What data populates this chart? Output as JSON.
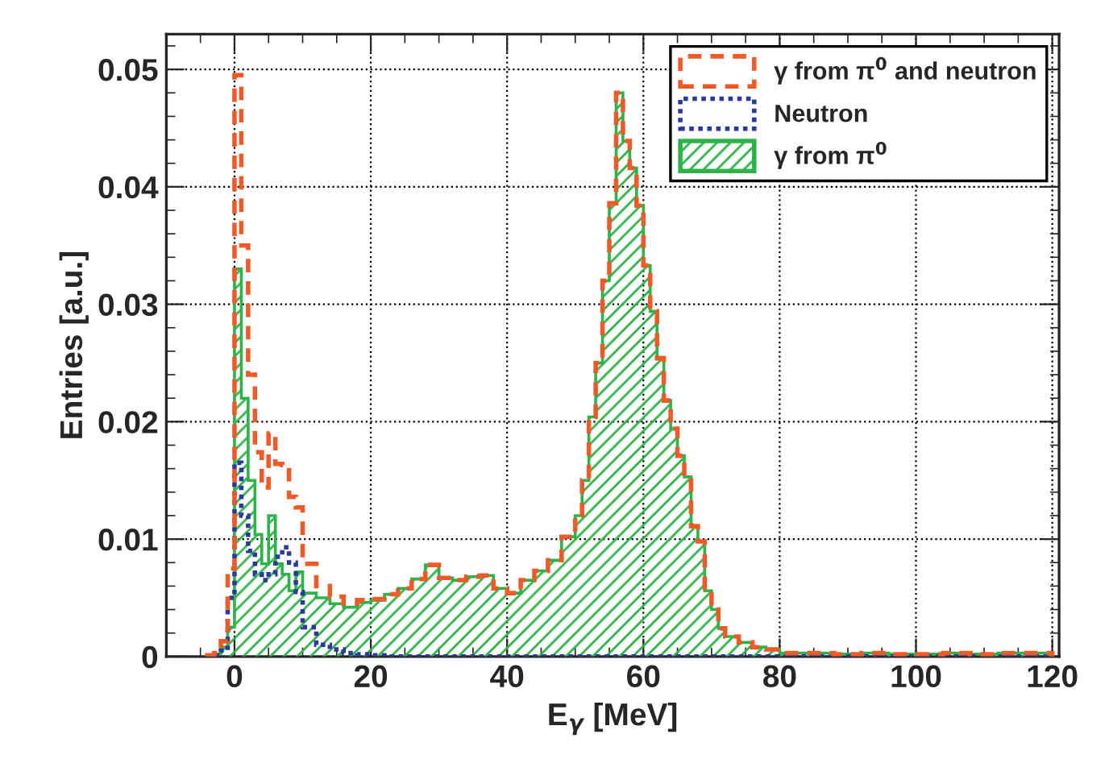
{
  "chart_data": {
    "type": "histogram",
    "xlabel": "E$_{γ}$ [MeV]",
    "ylabel": "Entries [a.u.]",
    "bins": [
      -4,
      -3,
      -2,
      -1,
      0,
      1,
      2,
      3,
      4,
      5,
      6,
      7,
      8,
      9,
      10,
      12,
      14,
      16,
      18,
      20,
      22,
      24,
      26,
      28,
      30,
      32,
      34,
      36,
      38,
      40,
      42,
      44,
      46,
      48,
      50,
      51,
      52,
      53,
      54,
      55,
      56,
      57,
      58,
      59,
      60,
      61,
      62,
      63,
      64,
      65,
      66,
      67,
      68,
      69,
      70,
      71,
      72,
      74,
      76,
      78,
      80,
      84,
      88,
      92,
      96,
      100,
      104,
      108,
      112,
      116,
      120
    ],
    "series": [
      {
        "name": "γ from π$^{0}$ and neutron",
        "color": "#f05a28",
        "line_style": "dashed",
        "values": [
          0.0001,
          0.0003,
          0.0013,
          0.0075,
          0.0495,
          0.035,
          0.024,
          0.0174,
          0.0144,
          0.019,
          0.0164,
          0.0163,
          0.0136,
          0.0127,
          0.0079,
          0.006,
          0.0051,
          0.0045,
          0.0048,
          0.0049,
          0.0053,
          0.0058,
          0.0066,
          0.0078,
          0.0067,
          0.0065,
          0.0068,
          0.0069,
          0.0058,
          0.0054,
          0.0065,
          0.0073,
          0.0082,
          0.0102,
          0.012,
          0.015,
          0.0204,
          0.025,
          0.032,
          0.0386,
          0.048,
          0.0439,
          0.0416,
          0.0384,
          0.0333,
          0.0294,
          0.0254,
          0.0218,
          0.0194,
          0.0171,
          0.0153,
          0.0111,
          0.0098,
          0.0056,
          0.004,
          0.0024,
          0.0017,
          0.0012,
          0.0008,
          0.0006,
          0.0003,
          0.0003,
          0.0002,
          0.0003,
          0.0002,
          0.0002,
          0.0003,
          0.0002,
          0.0003,
          0.0003
        ]
      },
      {
        "name": "Neutron",
        "color": "#2b3a98",
        "line_style": "dotted",
        "values": [
          0,
          0.0001,
          0.0005,
          0.005,
          0.0165,
          0.012,
          0.009,
          0.007,
          0.0065,
          0.007,
          0.0085,
          0.0093,
          0.008,
          0.0055,
          0.0025,
          0.001,
          0.0006,
          0.0003,
          0.0002,
          0.0001,
          0,
          0,
          0,
          0,
          0,
          0,
          0,
          0,
          0,
          0,
          0,
          0,
          0,
          0,
          0,
          0,
          0,
          0,
          0,
          0,
          0,
          0,
          0,
          0,
          0,
          0,
          0,
          0,
          0,
          0,
          0,
          0,
          0,
          0,
          0,
          0,
          0,
          0,
          0,
          0,
          0,
          0,
          0,
          0,
          0,
          0,
          0,
          0,
          0,
          0
        ]
      },
      {
        "name": "γ from π$^{0}$",
        "color": "#2db34a",
        "line_style": "solid",
        "values": [
          0.0001,
          0.0002,
          0.0008,
          0.0025,
          0.033,
          0.022,
          0.015,
          0.0104,
          0.0079,
          0.012,
          0.0079,
          0.007,
          0.0056,
          0.0072,
          0.0054,
          0.005,
          0.0045,
          0.0042,
          0.0046,
          0.0048,
          0.0053,
          0.0058,
          0.0066,
          0.0078,
          0.0067,
          0.0065,
          0.0068,
          0.0069,
          0.0058,
          0.0054,
          0.0065,
          0.0073,
          0.0082,
          0.0102,
          0.012,
          0.015,
          0.0204,
          0.025,
          0.032,
          0.0386,
          0.048,
          0.0439,
          0.0416,
          0.0384,
          0.0333,
          0.0294,
          0.0254,
          0.0218,
          0.0194,
          0.0171,
          0.0153,
          0.0111,
          0.0098,
          0.0056,
          0.004,
          0.0024,
          0.0017,
          0.0012,
          0.0008,
          0.0006,
          0.0003,
          0.0003,
          0.0002,
          0.0003,
          0.0002,
          0.0002,
          0.0003,
          0.0002,
          0.0003,
          0.0003
        ]
      }
    ],
    "xlim": [
      -10,
      121
    ],
    "ylim": [
      0,
      0.053
    ],
    "xticks": [
      0,
      20,
      40,
      60,
      80,
      100,
      120
    ],
    "yticks": [
      0,
      0.01,
      0.02,
      0.03,
      0.04,
      0.05
    ],
    "grid": true,
    "legend": "top right"
  }
}
